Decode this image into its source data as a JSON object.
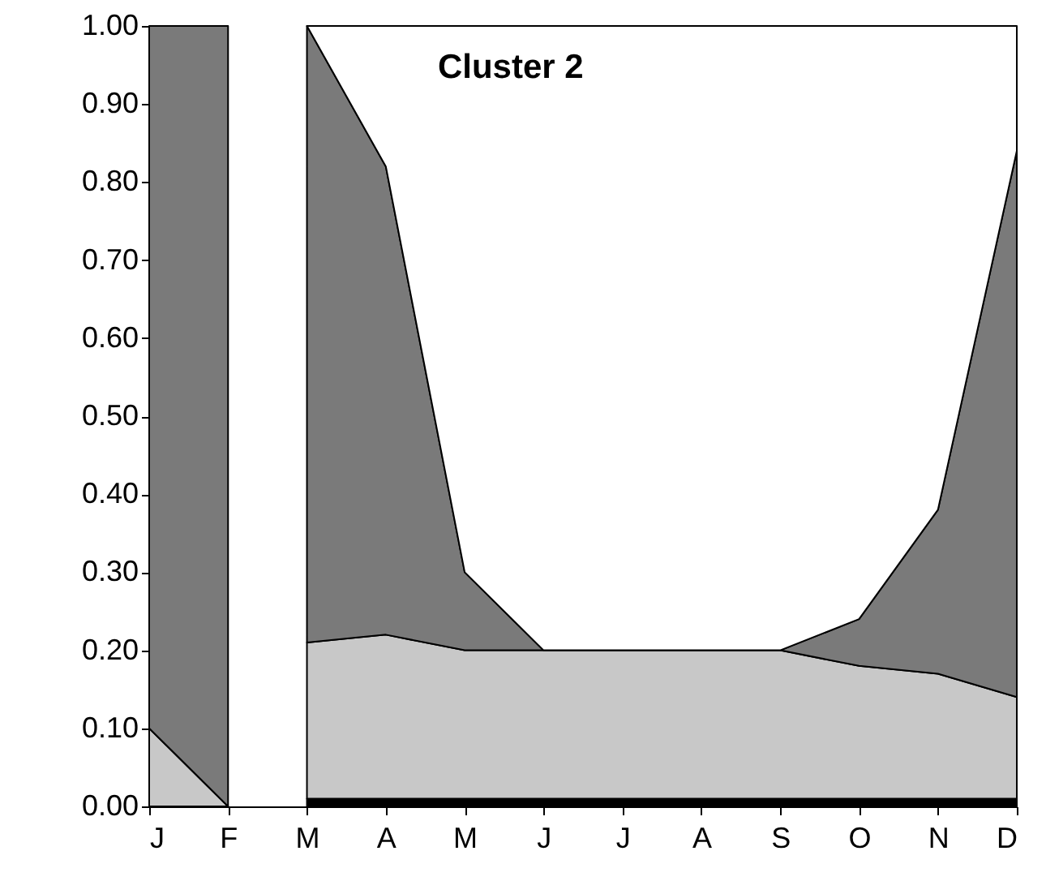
{
  "chart_data": {
    "type": "area",
    "title": "Cluster 2",
    "stacked": true,
    "categories": [
      "J",
      "F",
      "M",
      "A",
      "M",
      "J",
      "J",
      "A",
      "S",
      "O",
      "N",
      "D"
    ],
    "ylim": [
      0,
      1
    ],
    "yticks": [
      {
        "value": 0,
        "label": "0.00"
      },
      {
        "value": 0.1,
        "label": "0.10"
      },
      {
        "value": 0.2,
        "label": "0.20"
      },
      {
        "value": 0.3,
        "label": "0.30"
      },
      {
        "value": 0.4,
        "label": "0.40"
      },
      {
        "value": 0.5,
        "label": "0.50"
      },
      {
        "value": 0.6,
        "label": "0.60"
      },
      {
        "value": 0.7,
        "label": "0.70"
      },
      {
        "value": 0.8,
        "label": "0.80"
      },
      {
        "value": 0.9,
        "label": "0.90"
      },
      {
        "value": 1,
        "label": "1.00"
      }
    ],
    "series": [
      {
        "color": "#c8c8c8",
        "values": [
          0.1,
          0,
          null,
          null,
          null,
          null,
          null,
          null,
          null,
          null,
          null,
          null
        ]
      },
      {
        "color": "#7a7a7a",
        "values": [
          0.9,
          1.0,
          null,
          null,
          null,
          null,
          null,
          null,
          null,
          null,
          null,
          null
        ]
      },
      {
        "color": "#000000",
        "values": [
          null,
          null,
          0.01,
          0.01,
          0.01,
          0.01,
          0.01,
          0.01,
          0.01,
          0.01,
          0.01,
          0.01
        ]
      },
      {
        "color": "#c8c8c8",
        "values": [
          null,
          null,
          0.2,
          0.21,
          0.19,
          0.19,
          0.19,
          0.19,
          0.19,
          0.17,
          0.16,
          0.13
        ]
      },
      {
        "color": "#7a7a7a",
        "values": [
          null,
          null,
          0.79,
          0.6,
          0.1,
          0,
          0,
          0,
          0,
          0.06,
          0.21,
          0.7
        ]
      },
      {
        "color": "#ffffff",
        "values": [
          null,
          null,
          0,
          0.18,
          0.7,
          0.8,
          0.8,
          0.8,
          0.8,
          0.76,
          0.62,
          0.16
        ]
      }
    ]
  }
}
